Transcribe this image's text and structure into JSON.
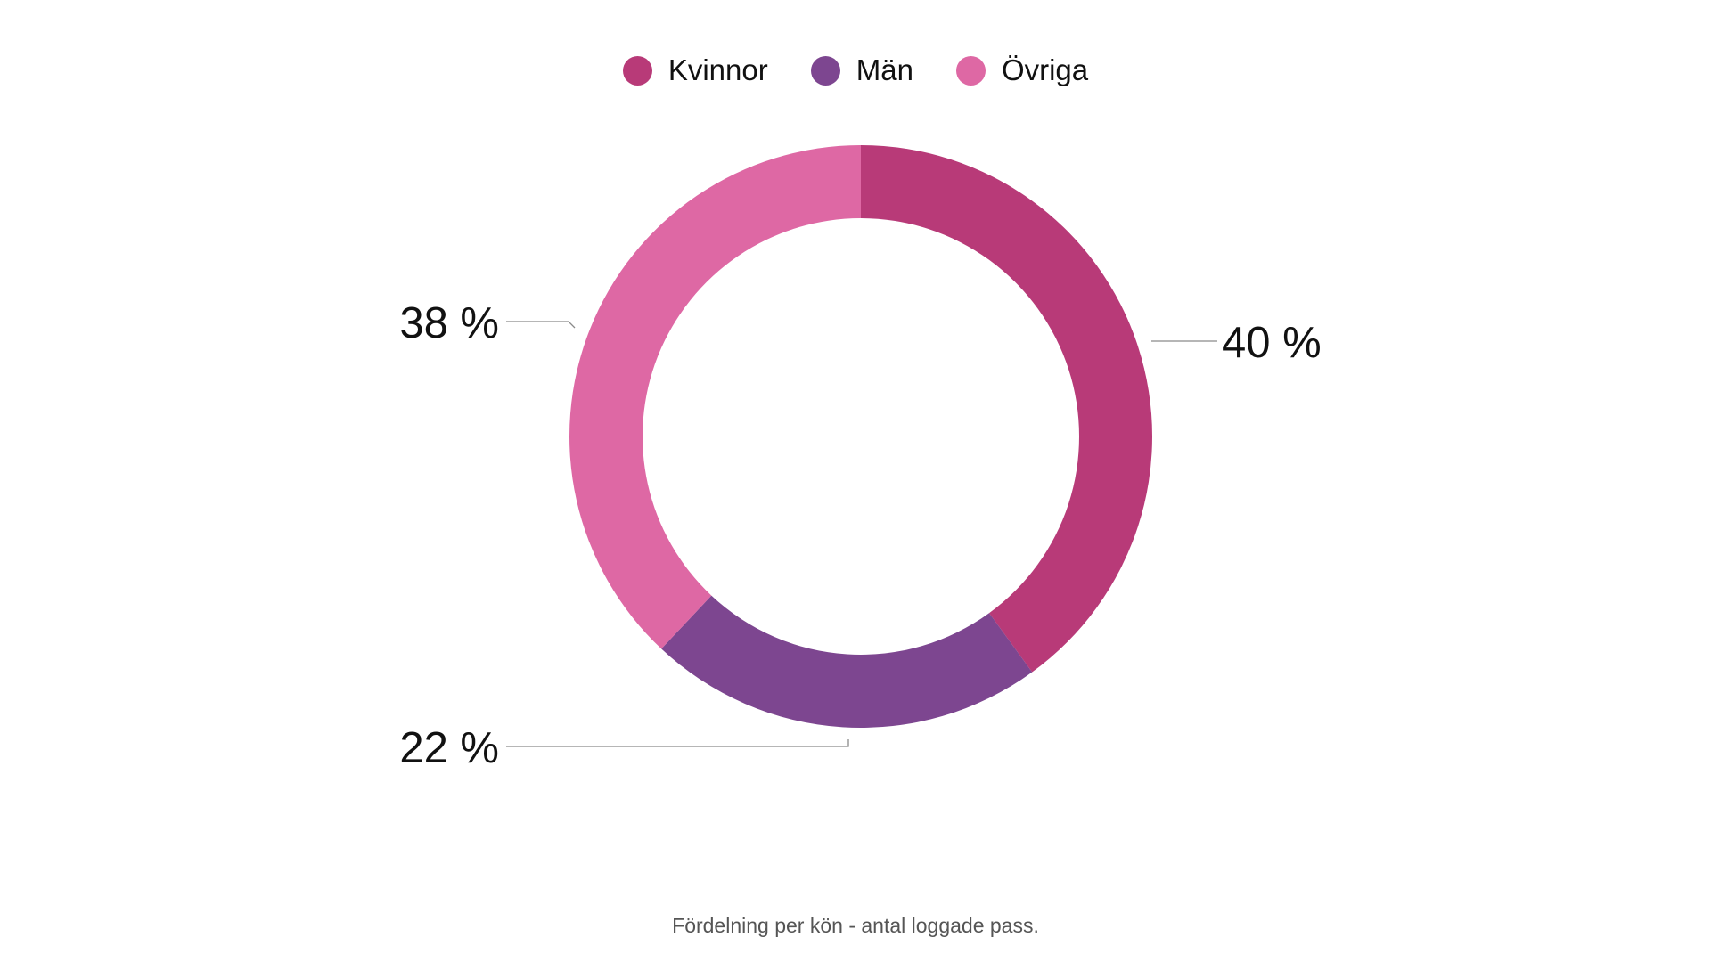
{
  "chart_data": {
    "type": "pie",
    "donut": true,
    "legend_position": "top-center",
    "categories": [
      "Kvinnor",
      "Män",
      "Övriga"
    ],
    "values": [
      40,
      22,
      38
    ],
    "labels": [
      "40 %",
      "22 %",
      "38 %"
    ],
    "colors": [
      "#b83a78",
      "#7d4690",
      "#de68a4"
    ],
    "caption": "Fördelning per kön - antal loggade pass."
  }
}
